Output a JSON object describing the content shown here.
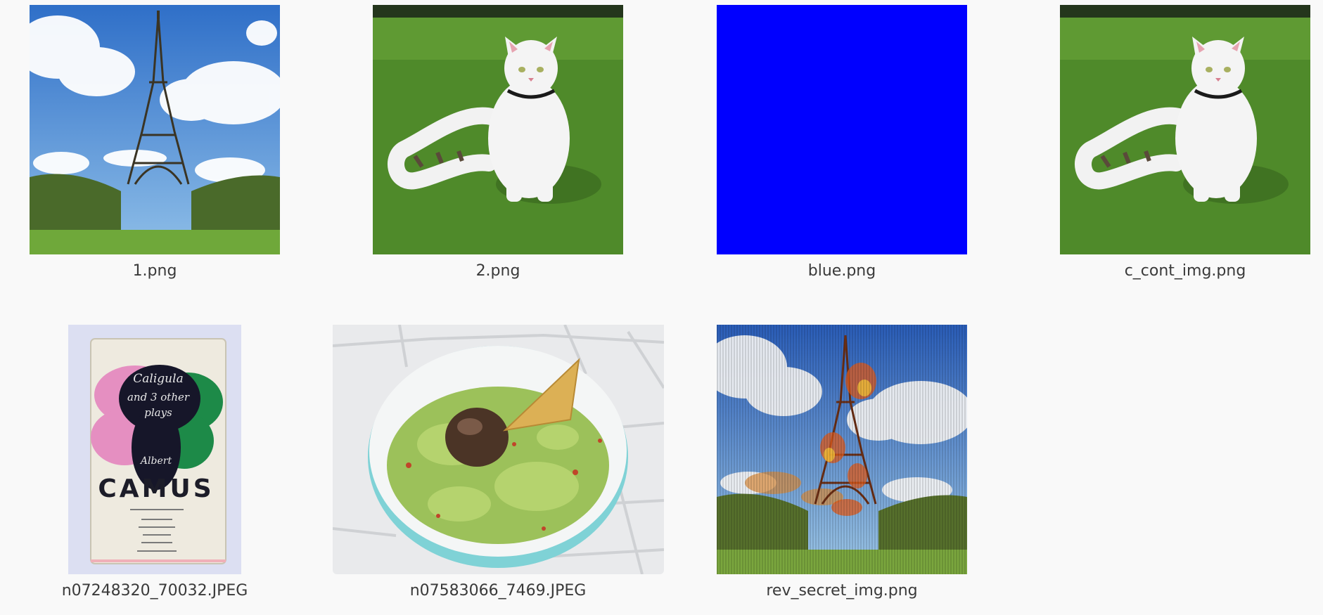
{
  "files": [
    {
      "name": "1.png",
      "thumbnail": "eiffel-tower-photo"
    },
    {
      "name": "2.png",
      "thumbnail": "white-cat-on-grass-photo"
    },
    {
      "name": "blue.png",
      "thumbnail": "solid-blue-square",
      "color": "#0000ff"
    },
    {
      "name": "c_cont_img.png",
      "thumbnail": "white-cat-on-grass-photo"
    },
    {
      "name": "n07248320_70032.JPEG",
      "thumbnail": "camus-book-cover-photo",
      "book_cover": {
        "title_line1": "Caligula",
        "title_line2": "and 3 other",
        "title_line3": "plays",
        "author_first": "Albert",
        "author_last": "CAMUS"
      }
    },
    {
      "name": "n07583066_7469.JPEG",
      "thumbnail": "guacamole-bowl-photo"
    },
    {
      "name": "rev_secret_img.png",
      "thumbnail": "distorted-eiffel-tower-photo"
    }
  ]
}
